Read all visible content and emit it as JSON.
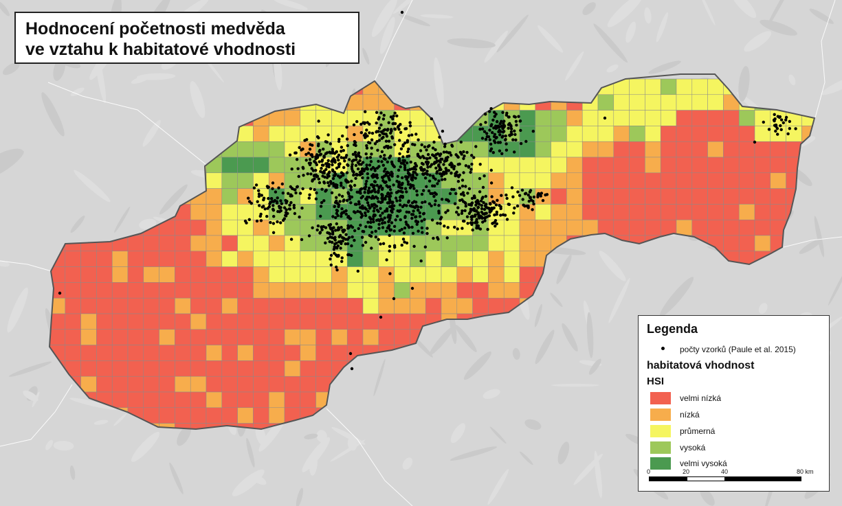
{
  "title": {
    "line1": "Hodnocení početnosti medvěda",
    "line2": "ve vztahu k habitatové vhodnosti"
  },
  "legend": {
    "heading": "Legenda",
    "points_label": "počty vzorků (Paule et al. 2015)",
    "habitat_heading": "habitatová vhodnost",
    "hsi_heading": "HSI",
    "classes": [
      {
        "label": "velmi nízká",
        "color": "#f26150"
      },
      {
        "label": "nízká",
        "color": "#f7ad4c"
      },
      {
        "label": "průmerná",
        "color": "#f5f560"
      },
      {
        "label": "vysoká",
        "color": "#9dc85a"
      },
      {
        "label": "velmi vysoká",
        "color": "#4b9a50"
      }
    ],
    "scalebar": {
      "ticks": [
        "0",
        "20",
        "40",
        "80 km"
      ]
    }
  },
  "map": {
    "region": "Slovakia",
    "background_color": "#d6d6d6",
    "border_color": "#555555",
    "point_color": "#000000"
  }
}
